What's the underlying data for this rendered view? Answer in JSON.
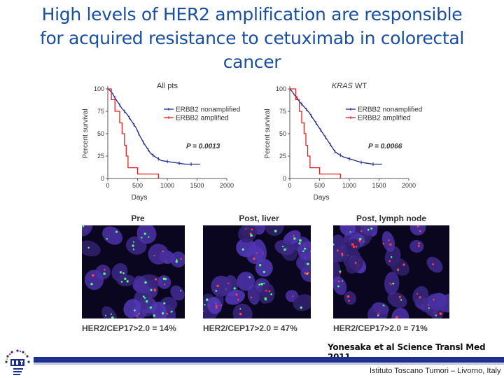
{
  "slide": {
    "title_lines": [
      "High levels of HER2 amplification are responsible",
      "for acquired resistance to cetuximab in colorectal",
      "cancer"
    ],
    "citation": "Yonesaka et al Science Transl Med 2011",
    "institute": "Istituto Toscano Tumori – Livorno, Italy"
  },
  "colors": {
    "title": "#1a4fa0",
    "nonamplified": "#1f2a8a",
    "amplified": "#e02020",
    "footer": "#1d2f8e"
  },
  "chart_data": [
    {
      "type": "line",
      "title": "All pts",
      "xlabel": "Days",
      "ylabel": "Percent survival",
      "xlim": [
        0,
        2000
      ],
      "ylim": [
        0,
        100
      ],
      "xticks": [
        "0",
        "500",
        "1000",
        "1500",
        "2000"
      ],
      "yticks": [
        "0",
        "25",
        "50",
        "75",
        "100"
      ],
      "legend_position": "top-right",
      "annotation": "P = 0.0013",
      "series": [
        {
          "name": "ERBB2 nonamplified",
          "color": "#1f2a8a",
          "points": [
            [
              0,
              100
            ],
            [
              40,
              98
            ],
            [
              80,
              95
            ],
            [
              120,
              90
            ],
            [
              160,
              86
            ],
            [
              200,
              82
            ],
            [
              240,
              78
            ],
            [
              280,
              75
            ],
            [
              320,
              72
            ],
            [
              360,
              68
            ],
            [
              400,
              64
            ],
            [
              440,
              60
            ],
            [
              480,
              56
            ],
            [
              520,
              50
            ],
            [
              560,
              45
            ],
            [
              600,
              40
            ],
            [
              640,
              36
            ],
            [
              680,
              32
            ],
            [
              720,
              28
            ],
            [
              760,
              26
            ],
            [
              800,
              24
            ],
            [
              850,
              22
            ],
            [
              900,
              20
            ],
            [
              1000,
              19
            ],
            [
              1100,
              18
            ],
            [
              1200,
              17
            ],
            [
              1300,
              16
            ],
            [
              1400,
              16
            ],
            [
              1550,
              16
            ]
          ]
        },
        {
          "name": "ERBB2 amplified",
          "color": "#e02020",
          "points": [
            [
              0,
              100
            ],
            [
              60,
              100
            ],
            [
              60,
              88
            ],
            [
              120,
              88
            ],
            [
              120,
              75
            ],
            [
              200,
              75
            ],
            [
              200,
              62
            ],
            [
              240,
              62
            ],
            [
              240,
              50
            ],
            [
              280,
              50
            ],
            [
              280,
              37
            ],
            [
              310,
              37
            ],
            [
              310,
              25
            ],
            [
              340,
              25
            ],
            [
              340,
              12
            ],
            [
              500,
              12
            ],
            [
              500,
              5
            ],
            [
              850,
              5
            ],
            [
              850,
              0
            ]
          ]
        }
      ]
    },
    {
      "type": "line",
      "title": "KRAS WT",
      "xlabel": "Days",
      "ylabel": "Percent survival",
      "xlim": [
        0,
        2000
      ],
      "ylim": [
        0,
        100
      ],
      "xticks": [
        "0",
        "500",
        "1000",
        "1500",
        "2000"
      ],
      "yticks": [
        "0",
        "25",
        "50",
        "75",
        "100"
      ],
      "legend_position": "top-right",
      "annotation": "P = 0.0066",
      "series": [
        {
          "name": "ERBB2 nonamplified",
          "color": "#1f2a8a",
          "points": [
            [
              0,
              100
            ],
            [
              40,
              97
            ],
            [
              80,
              93
            ],
            [
              120,
              90
            ],
            [
              160,
              86
            ],
            [
              200,
              83
            ],
            [
              240,
              80
            ],
            [
              280,
              77
            ],
            [
              320,
              74
            ],
            [
              360,
              70
            ],
            [
              400,
              66
            ],
            [
              440,
              62
            ],
            [
              480,
              58
            ],
            [
              520,
              54
            ],
            [
              560,
              50
            ],
            [
              600,
              46
            ],
            [
              640,
              42
            ],
            [
              680,
              38
            ],
            [
              720,
              34
            ],
            [
              760,
              30
            ],
            [
              800,
              28
            ],
            [
              850,
              26
            ],
            [
              900,
              24
            ],
            [
              1000,
              22
            ],
            [
              1100,
              20
            ],
            [
              1200,
              18
            ],
            [
              1300,
              17
            ],
            [
              1400,
              16
            ],
            [
              1550,
              16
            ]
          ]
        },
        {
          "name": "ERBB2 amplified",
          "color": "#e02020",
          "points": [
            [
              0,
              100
            ],
            [
              100,
              100
            ],
            [
              100,
              88
            ],
            [
              160,
              88
            ],
            [
              160,
              75
            ],
            [
              200,
              75
            ],
            [
              200,
              62
            ],
            [
              240,
              62
            ],
            [
              240,
              50
            ],
            [
              270,
              50
            ],
            [
              270,
              37
            ],
            [
              300,
              37
            ],
            [
              300,
              25
            ],
            [
              340,
              25
            ],
            [
              340,
              12
            ],
            [
              500,
              12
            ],
            [
              500,
              5
            ],
            [
              850,
              5
            ],
            [
              850,
              0
            ]
          ]
        }
      ]
    }
  ],
  "fish_panels": [
    {
      "label": "Pre",
      "ratio": "HER2/CEP17>2.0 = 14%"
    },
    {
      "label": "Post, liver",
      "ratio": "HER2/CEP17>2.0 = 47%"
    },
    {
      "label": "Post, lymph node",
      "ratio": "HER2/CEP17>2.0 = 71%"
    }
  ]
}
